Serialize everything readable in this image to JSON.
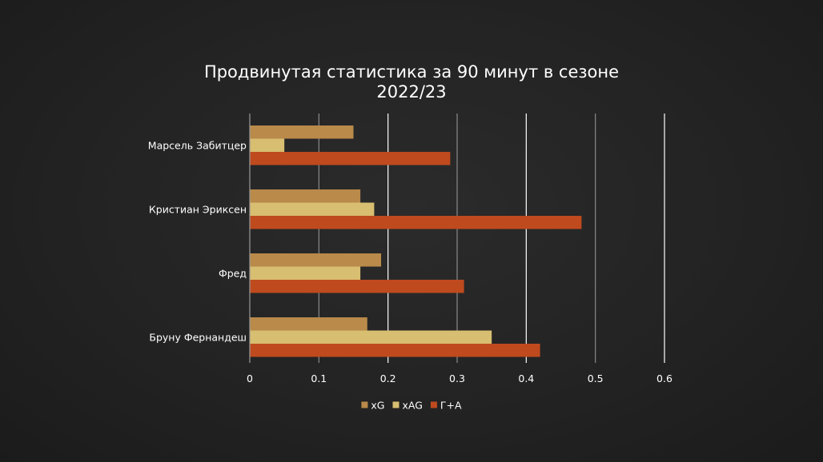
{
  "chart_data": {
    "type": "bar",
    "orientation": "horizontal",
    "title": "Продвинутая статистика за 90 минут в сезоне 2022/23",
    "categories": [
      "Марсель Забитцер",
      "Кристиан Эриксен",
      "Фред",
      "Бруну Фернандеш"
    ],
    "series": [
      {
        "name": "xG",
        "color": "#b98a4a",
        "values": [
          0.15,
          0.16,
          0.19,
          0.17
        ]
      },
      {
        "name": "xAG",
        "color": "#d8be70",
        "values": [
          0.05,
          0.18,
          0.16,
          0.35
        ]
      },
      {
        "name": "Г+А",
        "color": "#bf4a1e",
        "values": [
          0.29,
          0.48,
          0.31,
          0.42
        ]
      }
    ],
    "xlim": [
      0,
      0.6
    ],
    "xticks": [
      "0",
      "0.1",
      "0.2",
      "0.3",
      "0.4",
      "0.5",
      "0.6"
    ],
    "xlabel": "",
    "ylabel": "",
    "grid": true,
    "legend": "bottom"
  }
}
